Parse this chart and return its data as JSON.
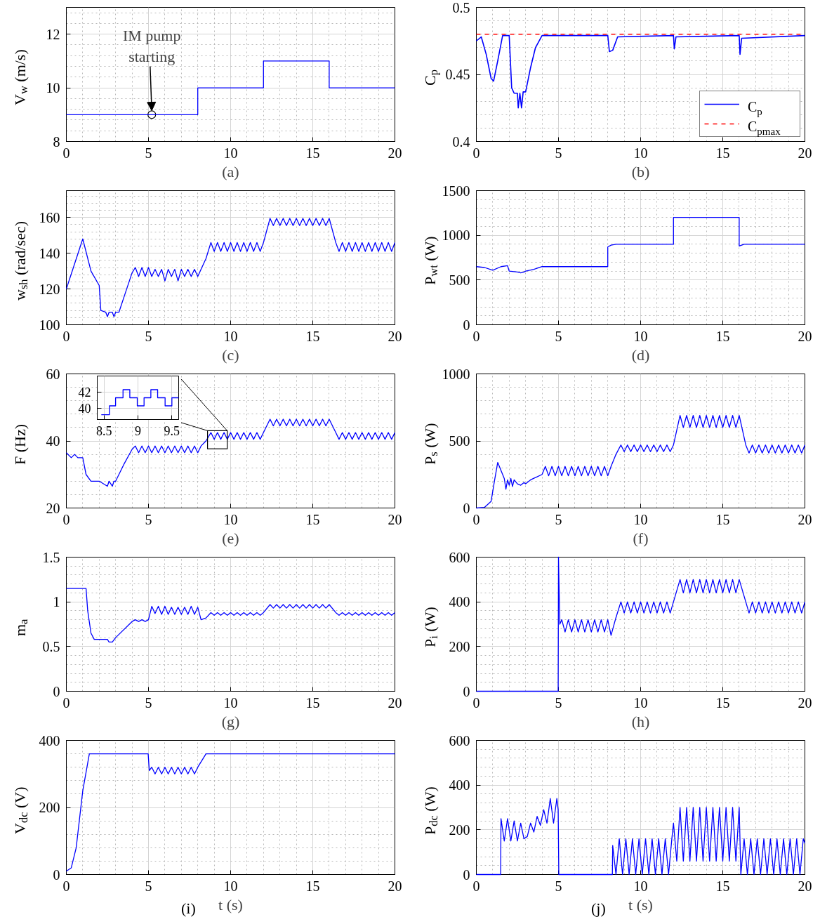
{
  "chart_data": [
    {
      "type": "line",
      "xlabel": "(a)",
      "ylabel": "V$_{w}$ (m/s)",
      "xlim": [
        0,
        20
      ],
      "ylim": [
        8,
        13
      ],
      "xticks": [
        0,
        5,
        10,
        15,
        20
      ],
      "yticks": [
        8,
        10,
        12
      ],
      "grid": true,
      "annotations": [
        {
          "text": "IM pump starting",
          "x": 5.2,
          "y": 9
        }
      ],
      "series": [
        {
          "color": "#0000ff",
          "x": [
            0,
            8,
            8,
            12,
            12,
            16,
            16,
            20
          ],
          "values": [
            9,
            9,
            10,
            10,
            11,
            11,
            10,
            10
          ]
        }
      ]
    },
    {
      "type": "line",
      "xlabel": "(b)",
      "ylabel": "C$_{p}$",
      "xlim": [
        0,
        20
      ],
      "ylim": [
        0.4,
        0.5
      ],
      "xticks": [
        0,
        5,
        10,
        15,
        20
      ],
      "yticks": [
        0.4,
        0.45,
        0.5
      ],
      "grid": true,
      "legend": "bottom right",
      "series": [
        {
          "name": "C$_{p}$",
          "color": "#0000ff",
          "line_style": "solid",
          "x": [
            0,
            0.3,
            0.6,
            0.9,
            1.05,
            1.3,
            1.6,
            2.0,
            2.15,
            2.3,
            2.5,
            2.55,
            2.65,
            2.75,
            2.85,
            3.0,
            3.3,
            3.6,
            4.0,
            8.0,
            8.1,
            8.3,
            8.6,
            12.0,
            12.05,
            12.15,
            16.0,
            16.05,
            16.15,
            20
          ],
          "values": [
            0.475,
            0.478,
            0.465,
            0.447,
            0.445,
            0.46,
            0.479,
            0.479,
            0.44,
            0.436,
            0.436,
            0.425,
            0.436,
            0.425,
            0.437,
            0.437,
            0.455,
            0.47,
            0.479,
            0.479,
            0.467,
            0.468,
            0.478,
            0.479,
            0.469,
            0.478,
            0.479,
            0.465,
            0.477,
            0.479
          ]
        },
        {
          "name": "C$_{pmax}$",
          "color": "#ff0000",
          "line_style": "dashed",
          "x": [
            0,
            20
          ],
          "values": [
            0.48,
            0.48
          ]
        }
      ]
    },
    {
      "type": "line",
      "xlabel": "(c)",
      "ylabel": "w$_{sh}$ (rad/sec)",
      "xlim": [
        0,
        20
      ],
      "ylim": [
        100,
        175
      ],
      "xticks": [
        0,
        5,
        10,
        15,
        20
      ],
      "yticks": [
        100,
        120,
        140,
        160
      ],
      "grid": true,
      "series": [
        {
          "color": "#0000ff",
          "x": [
            0,
            1,
            1.5,
            2,
            2.1,
            2.4,
            2.5,
            2.6,
            2.8,
            2.9,
            3,
            3.2,
            3.6,
            4.0,
            4.2,
            4.4,
            4.6,
            4.8,
            5.0,
            5.2,
            5.4,
            5.6,
            5.8,
            6.0,
            6.2,
            6.4,
            6.6,
            6.8,
            7.0,
            7.2,
            7.4,
            7.6,
            7.8,
            8.0,
            8.2,
            8.5,
            8.8,
            9.0,
            9.2,
            9.4,
            9.6,
            9.8,
            10.0,
            10.2,
            10.4,
            10.6,
            10.8,
            11.0,
            11.2,
            11.4,
            11.6,
            11.8,
            12.0,
            12.4,
            12.6,
            12.8,
            13.0,
            13.2,
            13.4,
            13.6,
            13.8,
            14.0,
            14.2,
            14.4,
            14.6,
            14.8,
            15.0,
            15.2,
            15.4,
            15.6,
            15.8,
            16.0,
            16.4,
            16.6,
            16.8,
            17.0,
            17.2,
            17.4,
            17.6,
            17.8,
            18.0,
            18.2,
            18.4,
            18.6,
            18.8,
            19.0,
            19.2,
            19.4,
            19.6,
            19.8,
            20.0
          ],
          "values": [
            120,
            148,
            130,
            122,
            108,
            107,
            104.5,
            107,
            107,
            104.5,
            107,
            107,
            118,
            129,
            132,
            127,
            132,
            127,
            132,
            127,
            131,
            127,
            131,
            124.5,
            131,
            127,
            131,
            124.5,
            131,
            127,
            131,
            127,
            131,
            127,
            131,
            137,
            146,
            141,
            146,
            141,
            146,
            141,
            146,
            141,
            146,
            141,
            146,
            141,
            146,
            141,
            146,
            141,
            146,
            159.5,
            155.5,
            159.5,
            155.5,
            159.5,
            155.5,
            159.5,
            155.5,
            159.5,
            155.5,
            159.5,
            155.5,
            159.5,
            155.5,
            159.5,
            155.5,
            159.5,
            155.5,
            159.5,
            146,
            141,
            146,
            141,
            146,
            141,
            146,
            141,
            146,
            141,
            146,
            141,
            146,
            141,
            146,
            141,
            146,
            141,
            146
          ]
        }
      ]
    },
    {
      "type": "line",
      "xlabel": "(d)",
      "ylabel": "P$_{wt}$ (W)",
      "xlim": [
        0,
        20
      ],
      "ylim": [
        0,
        1500
      ],
      "xticks": [
        0,
        5,
        10,
        15,
        20
      ],
      "yticks": [
        0,
        500,
        1000,
        1500
      ],
      "grid": true,
      "series": [
        {
          "color": "#0000ff",
          "x": [
            0,
            0.5,
            1.0,
            1.5,
            1.9,
            2.0,
            2.5,
            2.7,
            2.9,
            3.0,
            3.5,
            4.0,
            8.0,
            8.0,
            8.2,
            8.5,
            12,
            12,
            16,
            16,
            16.3,
            20
          ],
          "values": [
            650,
            640,
            610,
            650,
            660,
            600,
            590,
            580,
            590,
            600,
            620,
            650,
            650,
            870,
            890,
            900,
            900,
            1200,
            1200,
            880,
            900,
            900
          ]
        }
      ]
    },
    {
      "type": "line",
      "xlabel": "(e)",
      "ylabel": "F (Hz)",
      "xlim": [
        0,
        20
      ],
      "ylim": [
        20,
        60
      ],
      "xticks": [
        0,
        5,
        10,
        15,
        20
      ],
      "yticks": [
        20,
        40,
        60
      ],
      "grid": true,
      "series": [
        {
          "color": "#0000ff",
          "x": [
            0,
            0.3,
            0.5,
            0.7,
            1.0,
            1.2,
            1.5,
            2.0,
            2.5,
            2.6,
            2.8,
            2.9,
            3.0,
            3.5,
            4.0,
            4.2,
            4.4,
            4.6,
            4.8,
            5.0,
            5.2,
            5.4,
            5.6,
            5.8,
            6.0,
            6.2,
            6.4,
            6.6,
            6.8,
            7.0,
            7.2,
            7.4,
            7.6,
            7.8,
            8.0,
            8.2,
            8.5,
            8.8,
            9.0,
            9.2,
            9.4,
            9.6,
            9.8,
            10.0,
            10.2,
            10.4,
            10.6,
            10.8,
            11.0,
            11.2,
            11.4,
            11.6,
            11.8,
            12.0,
            12.4,
            12.6,
            12.8,
            13.0,
            13.2,
            13.4,
            13.6,
            13.8,
            14.0,
            14.2,
            14.4,
            14.6,
            14.8,
            15.0,
            15.2,
            15.4,
            15.6,
            15.8,
            16.0,
            16.4,
            16.6,
            16.8,
            17.0,
            17.2,
            17.4,
            17.6,
            17.8,
            18.0,
            18.2,
            18.4,
            18.6,
            18.8,
            19.0,
            19.2,
            19.4,
            19.6,
            19.8,
            20.0
          ],
          "values": [
            36.5,
            35,
            36,
            35,
            35,
            30,
            28,
            28,
            26.5,
            28,
            26.5,
            28,
            28,
            33,
            37.5,
            38.5,
            36.5,
            38.5,
            36.5,
            38.5,
            36.5,
            38.5,
            36.5,
            38.5,
            36.5,
            38.5,
            36.5,
            38.5,
            36.5,
            38.5,
            36.5,
            38.5,
            36.5,
            38.5,
            36.5,
            38.5,
            40,
            42.5,
            40.5,
            42.5,
            40.5,
            42.5,
            40.5,
            42.5,
            40.5,
            42.5,
            40.5,
            42.5,
            40.5,
            42.5,
            40.5,
            42.5,
            40.5,
            42.5,
            46.5,
            44.5,
            46.5,
            44.5,
            46.5,
            44.5,
            46.5,
            44.5,
            46.5,
            44.5,
            46.5,
            44.5,
            46.5,
            44.5,
            46.5,
            44.5,
            46.5,
            44.5,
            46.5,
            42.5,
            40.5,
            42.5,
            40.5,
            42.5,
            40.5,
            42.5,
            40.5,
            42.5,
            40.5,
            42.5,
            40.5,
            42.5,
            40.5,
            42.5,
            40.5,
            42.5,
            40.5,
            42.5
          ]
        }
      ]
    },
    {
      "type": "step",
      "xlim": [
        8.4,
        9.6
      ],
      "ylim": [
        38.6,
        44
      ],
      "xticks": [
        8.5,
        9,
        9.5
      ],
      "yticks": [
        40,
        42
      ],
      "grid": true,
      "series": [
        {
          "color": "#0000ff",
          "x": [
            8.46,
            8.58,
            8.67,
            8.78,
            8.88,
            8.99,
            9.09,
            9.19,
            9.29,
            9.4,
            9.5,
            9.6
          ],
          "values": [
            39.2,
            40.3,
            41.3,
            42.3,
            41.3,
            40.3,
            41.3,
            42.3,
            41.3,
            40.3,
            41.3,
            41.3
          ]
        }
      ]
    },
    {
      "type": "line",
      "xlabel": "(f)",
      "ylabel": "P$_{s}$ (W)",
      "xlim": [
        0,
        20
      ],
      "ylim": [
        0,
        1000
      ],
      "xticks": [
        0,
        5,
        10,
        15,
        20
      ],
      "yticks": [
        0,
        500,
        1000
      ],
      "grid": true,
      "series": [
        {
          "color": "#0000ff",
          "x": [
            0,
            0.5,
            0.9,
            1.1,
            1.3,
            1.5,
            1.7,
            1.8,
            1.9,
            2.0,
            2.1,
            2.2,
            2.3,
            2.5,
            2.7,
            2.9,
            3.0,
            3.3,
            4.0,
            4.2,
            4.4,
            4.6,
            4.8,
            5.0,
            5.2,
            5.4,
            5.6,
            5.8,
            6.0,
            6.2,
            6.4,
            6.6,
            6.8,
            7.0,
            7.2,
            7.4,
            7.6,
            7.8,
            8.0,
            8.2,
            8.5,
            8.8,
            9.0,
            9.2,
            9.4,
            9.6,
            9.8,
            10.0,
            10.2,
            10.4,
            10.6,
            10.8,
            11.0,
            11.2,
            11.4,
            11.6,
            11.8,
            12.0,
            12.4,
            12.6,
            12.8,
            13.0,
            13.2,
            13.4,
            13.6,
            13.8,
            14.0,
            14.2,
            14.4,
            14.6,
            14.8,
            15.0,
            15.2,
            15.4,
            15.6,
            15.8,
            16.0,
            16.4,
            16.6,
            16.8,
            17.0,
            17.2,
            17.4,
            17.6,
            17.8,
            18.0,
            18.2,
            18.4,
            18.6,
            18.8,
            19.0,
            19.2,
            19.4,
            19.6,
            19.8,
            20.0
          ],
          "values": [
            0,
            5,
            50,
            200,
            340,
            280,
            220,
            140,
            210,
            170,
            220,
            160,
            210,
            180,
            170,
            190,
            180,
            210,
            250,
            310,
            240,
            310,
            240,
            310,
            240,
            310,
            240,
            310,
            240,
            310,
            240,
            310,
            240,
            310,
            240,
            310,
            240,
            310,
            240,
            310,
            400,
            470,
            420,
            470,
            420,
            470,
            420,
            470,
            420,
            470,
            420,
            470,
            420,
            470,
            420,
            470,
            420,
            470,
            690,
            600,
            690,
            600,
            690,
            600,
            690,
            600,
            690,
            600,
            690,
            600,
            690,
            600,
            690,
            600,
            690,
            600,
            690,
            470,
            410,
            470,
            410,
            470,
            410,
            470,
            410,
            470,
            410,
            470,
            410,
            470,
            410,
            470,
            410,
            470,
            410,
            470
          ]
        }
      ]
    },
    {
      "type": "line",
      "xlabel": "(g)",
      "ylabel": "m$_{a}$",
      "xlim": [
        0,
        20
      ],
      "ylim": [
        0,
        1.5
      ],
      "xticks": [
        0,
        5,
        10,
        15,
        20
      ],
      "yticks": [
        0,
        0.5,
        1,
        1.5
      ],
      "grid": true,
      "series": [
        {
          "color": "#0000ff",
          "x": [
            0,
            1.2,
            1.3,
            1.5,
            1.7,
            2.5,
            2.6,
            2.8,
            3.0,
            4.0,
            4.2,
            4.4,
            4.6,
            4.8,
            5.0,
            5.2,
            5.4,
            5.6,
            5.8,
            6.0,
            6.2,
            6.4,
            6.6,
            6.8,
            7.0,
            7.2,
            7.4,
            7.6,
            7.8,
            8.0,
            8.2,
            8.5,
            8.8,
            9.0,
            9.2,
            9.4,
            9.6,
            9.8,
            10.0,
            10.2,
            10.4,
            10.6,
            10.8,
            11.0,
            11.2,
            11.4,
            11.6,
            11.8,
            12.0,
            12.4,
            12.6,
            12.8,
            13.0,
            13.2,
            13.4,
            13.6,
            13.8,
            14.0,
            14.2,
            14.4,
            14.6,
            14.8,
            15.0,
            15.2,
            15.4,
            15.6,
            15.8,
            16.0,
            16.4,
            16.6,
            16.8,
            17.0,
            17.2,
            17.4,
            17.6,
            17.8,
            18.0,
            18.2,
            18.4,
            18.6,
            18.8,
            19.0,
            19.2,
            19.4,
            19.6,
            19.8,
            20.0
          ],
          "values": [
            1.15,
            1.15,
            0.9,
            0.65,
            0.58,
            0.58,
            0.55,
            0.55,
            0.6,
            0.78,
            0.8,
            0.78,
            0.8,
            0.78,
            0.8,
            0.95,
            0.87,
            0.95,
            0.86,
            0.95,
            0.86,
            0.94,
            0.86,
            0.94,
            0.86,
            0.94,
            0.86,
            0.95,
            0.86,
            0.94,
            0.8,
            0.82,
            0.88,
            0.85,
            0.88,
            0.85,
            0.88,
            0.85,
            0.88,
            0.85,
            0.88,
            0.85,
            0.88,
            0.85,
            0.88,
            0.85,
            0.88,
            0.85,
            0.88,
            0.97,
            0.93,
            0.97,
            0.93,
            0.97,
            0.93,
            0.97,
            0.93,
            0.97,
            0.93,
            0.97,
            0.93,
            0.97,
            0.93,
            0.97,
            0.93,
            0.97,
            0.93,
            0.97,
            0.88,
            0.85,
            0.88,
            0.85,
            0.88,
            0.85,
            0.88,
            0.85,
            0.88,
            0.85,
            0.88,
            0.85,
            0.88,
            0.85,
            0.88,
            0.85,
            0.88,
            0.85,
            0.88
          ]
        }
      ]
    },
    {
      "type": "line",
      "xlabel": "(h)",
      "ylabel": "P$_{i}$ (W)",
      "xlim": [
        0,
        20
      ],
      "ylim": [
        0,
        600
      ],
      "xticks": [
        0,
        5,
        10,
        15,
        20
      ],
      "yticks": [
        0,
        200,
        400,
        600
      ],
      "grid": true,
      "series": [
        {
          "color": "#0000ff",
          "x": [
            0,
            4.98,
            5.0,
            5.08,
            5.2,
            5.4,
            5.6,
            5.8,
            6.0,
            6.2,
            6.4,
            6.6,
            6.8,
            7.0,
            7.2,
            7.4,
            7.6,
            7.8,
            8.0,
            8.2,
            8.5,
            8.8,
            9.0,
            9.2,
            9.4,
            9.6,
            9.8,
            10.0,
            10.2,
            10.4,
            10.6,
            10.8,
            11.0,
            11.2,
            11.4,
            11.6,
            11.8,
            12.0,
            12.4,
            12.6,
            12.8,
            13.0,
            13.2,
            13.4,
            13.6,
            13.8,
            14.0,
            14.2,
            14.4,
            14.6,
            14.8,
            15.0,
            15.2,
            15.4,
            15.6,
            15.8,
            16.0,
            16.4,
            16.6,
            16.8,
            17.0,
            17.2,
            17.4,
            17.6,
            17.8,
            18.0,
            18.2,
            18.4,
            18.6,
            18.8,
            19.0,
            19.2,
            19.4,
            19.6,
            19.8,
            20.0
          ],
          "values": [
            0,
            0,
            600,
            300,
            320,
            265,
            320,
            265,
            320,
            265,
            320,
            265,
            320,
            265,
            320,
            265,
            320,
            265,
            320,
            250,
            330,
            400,
            350,
            400,
            350,
            400,
            350,
            400,
            350,
            400,
            350,
            400,
            350,
            400,
            350,
            400,
            350,
            400,
            500,
            440,
            500,
            440,
            500,
            440,
            500,
            440,
            500,
            440,
            500,
            440,
            500,
            440,
            500,
            440,
            500,
            440,
            500,
            400,
            350,
            400,
            350,
            400,
            350,
            400,
            350,
            400,
            350,
            400,
            350,
            400,
            350,
            400,
            350,
            400,
            350,
            400
          ]
        }
      ]
    },
    {
      "type": "line",
      "xlabel": "t (s)",
      "ylabel": "V$_{dc}$ (V)",
      "xlim": [
        0,
        20
      ],
      "ylim": [
        0,
        400
      ],
      "xticks": [
        0,
        5,
        10,
        15,
        20
      ],
      "yticks": [
        0,
        200,
        400
      ],
      "grid": true,
      "annotations": [
        "(i)"
      ],
      "series": [
        {
          "color": "#0000ff",
          "x": [
            0,
            0.3,
            0.6,
            1.0,
            1.4,
            4.98,
            5.05,
            5.2,
            5.4,
            5.6,
            5.8,
            6.0,
            6.2,
            6.4,
            6.6,
            6.8,
            7.0,
            7.2,
            7.4,
            7.6,
            7.8,
            8.0,
            8.5,
            20
          ],
          "values": [
            10,
            20,
            80,
            250,
            360,
            360,
            310,
            320,
            300,
            320,
            300,
            320,
            300,
            320,
            300,
            320,
            300,
            320,
            300,
            320,
            300,
            320,
            360,
            360
          ]
        }
      ]
    },
    {
      "type": "line",
      "xlabel": "t (s)",
      "ylabel": "P$_{dc}$ (W)",
      "xlim": [
        0,
        20
      ],
      "ylim": [
        0,
        600
      ],
      "xticks": [
        0,
        5,
        10,
        15,
        20
      ],
      "yticks": [
        0,
        200,
        400,
        600
      ],
      "grid": true,
      "annotations": [
        "(j)"
      ],
      "series": [
        {
          "color": "#0000ff",
          "x": [
            0,
            1.48,
            1.5,
            1.7,
            1.9,
            2.1,
            2.3,
            2.5,
            2.7,
            2.9,
            3.1,
            3.3,
            3.5,
            3.7,
            3.9,
            4.1,
            4.3,
            4.5,
            4.7,
            4.9,
            4.98,
            5.02,
            8.28,
            8.3,
            8.5,
            8.7,
            8.9,
            9.1,
            9.3,
            9.5,
            9.7,
            9.9,
            10.1,
            10.3,
            10.5,
            10.7,
            10.9,
            11.1,
            11.3,
            11.5,
            11.7,
            11.9,
            12.0,
            12.2,
            12.4,
            12.6,
            12.8,
            13.0,
            13.2,
            13.4,
            13.6,
            13.8,
            14.0,
            14.2,
            14.4,
            14.6,
            14.8,
            15.0,
            15.2,
            15.4,
            15.6,
            15.8,
            16.0,
            16.1,
            16.3,
            16.5,
            16.7,
            16.9,
            17.1,
            17.3,
            17.5,
            17.7,
            17.9,
            18.1,
            18.3,
            18.5,
            18.7,
            18.9,
            19.1,
            19.3,
            19.5,
            19.7,
            19.9,
            20
          ],
          "values": [
            0,
            0,
            250,
            150,
            250,
            150,
            240,
            150,
            230,
            160,
            170,
            230,
            190,
            260,
            220,
            290,
            230,
            340,
            230,
            340,
            290,
            0,
            0,
            130,
            0,
            160,
            0,
            160,
            0,
            160,
            0,
            160,
            0,
            160,
            0,
            160,
            0,
            160,
            0,
            160,
            0,
            160,
            230,
            60,
            300,
            60,
            300,
            60,
            300,
            60,
            300,
            60,
            300,
            60,
            300,
            60,
            300,
            60,
            300,
            60,
            300,
            60,
            300,
            0,
            160,
            0,
            160,
            0,
            160,
            0,
            160,
            0,
            160,
            0,
            160,
            0,
            160,
            0,
            160,
            0,
            160,
            0,
            160,
            140
          ]
        }
      ]
    }
  ]
}
